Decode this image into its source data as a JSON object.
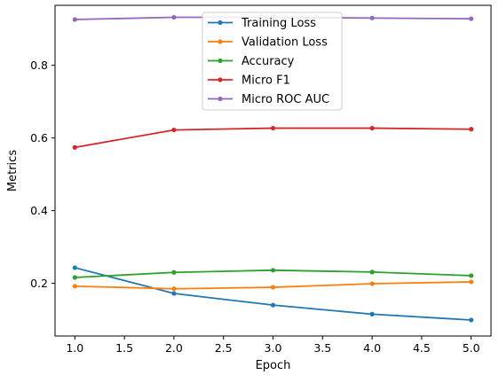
{
  "chart_data": {
    "type": "line",
    "title": "",
    "xlabel": "Epoch",
    "ylabel": "Metrics",
    "x": [
      1.0,
      2.0,
      3.0,
      4.0,
      5.0
    ],
    "xlim": [
      0.8,
      5.2
    ],
    "ylim": [
      0.055,
      0.965
    ],
    "xticks": [
      1.0,
      1.5,
      2.0,
      2.5,
      3.0,
      3.5,
      4.0,
      4.5,
      5.0
    ],
    "xtick_labels": [
      "1.0",
      "1.5",
      "2.0",
      "2.5",
      "3.0",
      "3.5",
      "4.0",
      "4.5",
      "5.0"
    ],
    "yticks": [
      0.2,
      0.4,
      0.6,
      0.8
    ],
    "ytick_labels": [
      "0.2",
      "0.4",
      "0.6",
      "0.8"
    ],
    "grid": false,
    "legend_position": "top-center",
    "series": [
      {
        "name": "Training Loss",
        "color": "#1f77b4",
        "values": [
          0.243,
          0.172,
          0.14,
          0.115,
          0.099
        ]
      },
      {
        "name": "Validation Loss",
        "color": "#ff7f0e",
        "values": [
          0.192,
          0.185,
          0.189,
          0.199,
          0.204
        ]
      },
      {
        "name": "Accuracy",
        "color": "#2ca02c",
        "values": [
          0.216,
          0.23,
          0.236,
          0.231,
          0.221
        ]
      },
      {
        "name": "Micro F1",
        "color": "#d62728",
        "values": [
          0.574,
          0.622,
          0.627,
          0.627,
          0.624
        ]
      },
      {
        "name": "Micro ROC AUC",
        "color": "#9467bd",
        "values": [
          0.926,
          0.932,
          0.932,
          0.93,
          0.928
        ]
      }
    ]
  }
}
